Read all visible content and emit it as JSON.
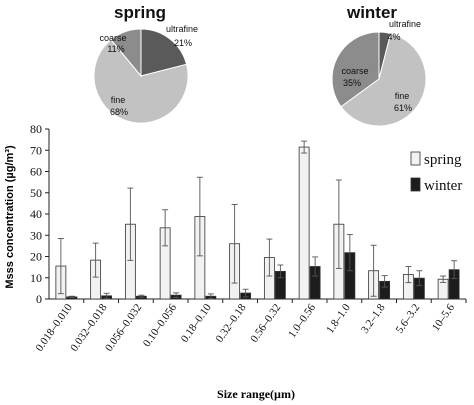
{
  "chart_data": [
    {
      "type": "pie",
      "title": "spring",
      "labels": [
        "ultrafine",
        "fine",
        "coarse"
      ],
      "values": [
        21,
        68,
        11
      ],
      "value_labels": [
        "21%",
        "68%",
        "11%"
      ],
      "colors": [
        "#5a5a5a",
        "#c2c2c2",
        "#8c8c8c"
      ]
    },
    {
      "type": "pie",
      "title": "winter",
      "labels": [
        "ultrafine",
        "fine",
        "coarse"
      ],
      "values": [
        4,
        61,
        35
      ],
      "value_labels": [
        "4%",
        "61%",
        "35%"
      ],
      "colors": [
        "#5a5a5a",
        "#c2c2c2",
        "#8c8c8c"
      ]
    },
    {
      "type": "bar",
      "categories": [
        "0.018–0.010",
        "0.032–0.018",
        "0.056–0.032",
        "0.10–0.056",
        "0.18–0.10",
        "0.32–0.18",
        "0.56–0.32",
        "1.0–0.56",
        "1.8–1.0",
        "3.2–1.8",
        "5.6–3.2",
        "10–5.6"
      ],
      "series": [
        {
          "name": "spring",
          "color": "#f2f2f2",
          "values": [
            15.5,
            18.3,
            35.2,
            33.5,
            38.8,
            26,
            19.5,
            71.5,
            35.2,
            13.3,
            11.5,
            9.3
          ],
          "error": [
            13,
            8,
            17,
            8.5,
            18.5,
            18.5,
            8.7,
            2.8,
            20.8,
            12,
            3.8,
            1.5
          ]
        },
        {
          "name": "winter",
          "color": "#1c1c1c",
          "values": [
            1,
            1.5,
            1.3,
            1.8,
            1.3,
            2.8,
            13,
            15.3,
            21.8,
            8.3,
            9.8,
            13.8
          ],
          "error": [
            0.3,
            1.2,
            0.5,
            1.1,
            1.1,
            1.8,
            3,
            4.5,
            8.5,
            2.7,
            3.5,
            4.2
          ]
        }
      ],
      "ylabel": "Msss concentration (µg/m³)",
      "xlabel": "Size range(µm)",
      "ylim": [
        0,
        80
      ],
      "yticks": [
        0,
        10,
        20,
        30,
        40,
        50,
        60,
        70,
        80
      ],
      "grid": false,
      "legend_position": "right"
    }
  ]
}
